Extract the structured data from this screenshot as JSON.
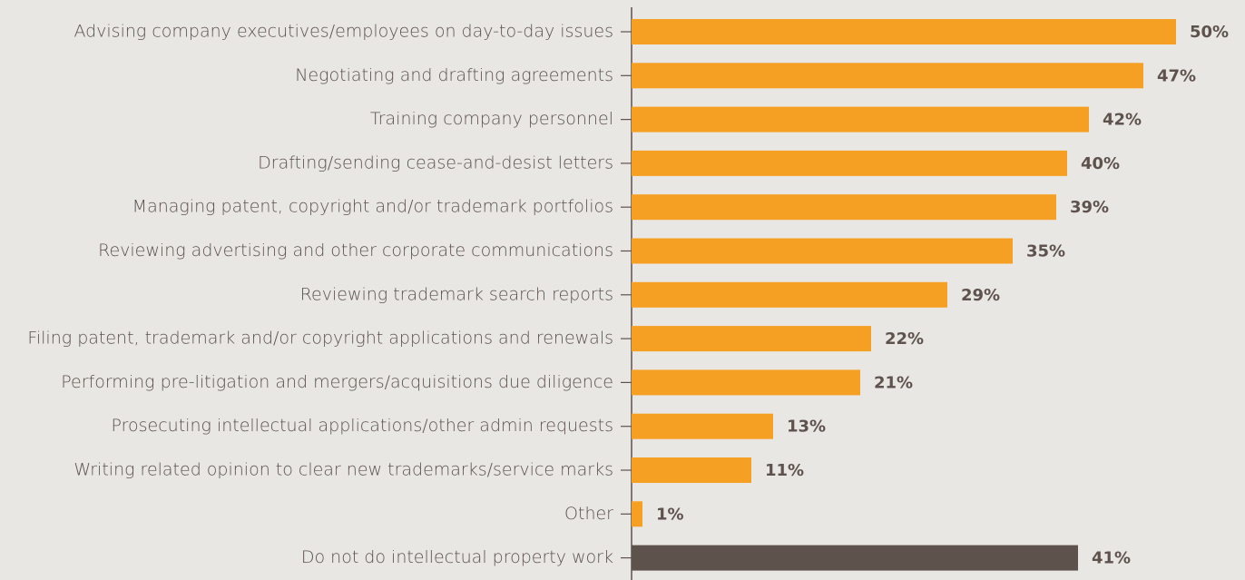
{
  "chart_data": {
    "type": "bar",
    "orientation": "horizontal",
    "categories": [
      "Advising company executives/employees on day-to-day issues",
      "Negotiating and drafting agreements",
      "Training company personnel",
      "Drafting/sending cease-and-desist letters",
      "Managing patent, copyright and/or trademark portfolios",
      "Reviewing advertising and other corporate communications",
      "Reviewing trademark search reports",
      "Filing patent, trademark and/or copyright applications and renewals",
      "Performing pre-litigation and mergers/acquisitions due diligence",
      "Prosecuting intellectual applications/other admin requests",
      "Writing related opinion to clear new trademarks/service marks",
      "Other",
      "Do not do intellectual property work"
    ],
    "values": [
      50,
      47,
      42,
      40,
      39,
      35,
      29,
      22,
      21,
      13,
      11,
      1,
      41
    ],
    "value_labels": [
      "50%",
      "47%",
      "42%",
      "40%",
      "39%",
      "35%",
      "29%",
      "22%",
      "21%",
      "13%",
      "11%",
      "1%",
      "41%"
    ],
    "colors": [
      "#f5a023",
      "#f5a023",
      "#f5a023",
      "#f5a023",
      "#f5a023",
      "#f5a023",
      "#f5a023",
      "#f5a023",
      "#f5a023",
      "#f5a023",
      "#f5a023",
      "#f5a023",
      "#5e524d"
    ]
  }
}
